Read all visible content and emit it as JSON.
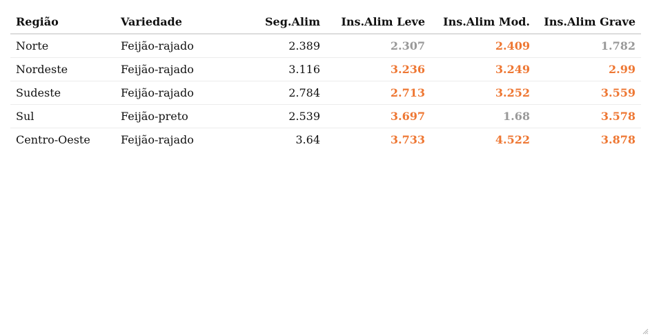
{
  "colors": {
    "accent_orange": "#ee7733",
    "muted_gray": "#999999",
    "text": "#111111"
  },
  "chart_data": {
    "type": "table",
    "columns": [
      "Região",
      "Variedade",
      "Seg.Alim",
      "Ins.Alim Leve",
      "Ins.Alim Mod.",
      "Ins.Alim Grave"
    ],
    "rows": [
      {
        "regiao": "Norte",
        "variedade": "Feijão-rajado",
        "seg": "2.389",
        "leve": "2.307",
        "mod": "2.409",
        "grave": "1.782",
        "leve_style": "gray",
        "mod_style": "orange",
        "grave_style": "gray"
      },
      {
        "regiao": "Nordeste",
        "variedade": "Feijão-rajado",
        "seg": "3.116",
        "leve": "3.236",
        "mod": "3.249",
        "grave": "2.99",
        "leve_style": "orange",
        "mod_style": "orange",
        "grave_style": "orange"
      },
      {
        "regiao": "Sudeste",
        "variedade": "Feijão-rajado",
        "seg": "2.784",
        "leve": "2.713",
        "mod": "3.252",
        "grave": "3.559",
        "leve_style": "orange",
        "mod_style": "orange",
        "grave_style": "orange"
      },
      {
        "regiao": "Sul",
        "variedade": "Feijão-preto",
        "seg": "2.539",
        "leve": "3.697",
        "mod": "1.68",
        "grave": "3.578",
        "leve_style": "orange",
        "mod_style": "gray",
        "grave_style": "orange"
      },
      {
        "regiao": "Centro-Oeste",
        "variedade": "Feijão-rajado",
        "seg": "3.64",
        "leve": "3.733",
        "mod": "4.522",
        "grave": "3.878",
        "leve_style": "orange",
        "mod_style": "orange",
        "grave_style": "orange"
      }
    ]
  }
}
